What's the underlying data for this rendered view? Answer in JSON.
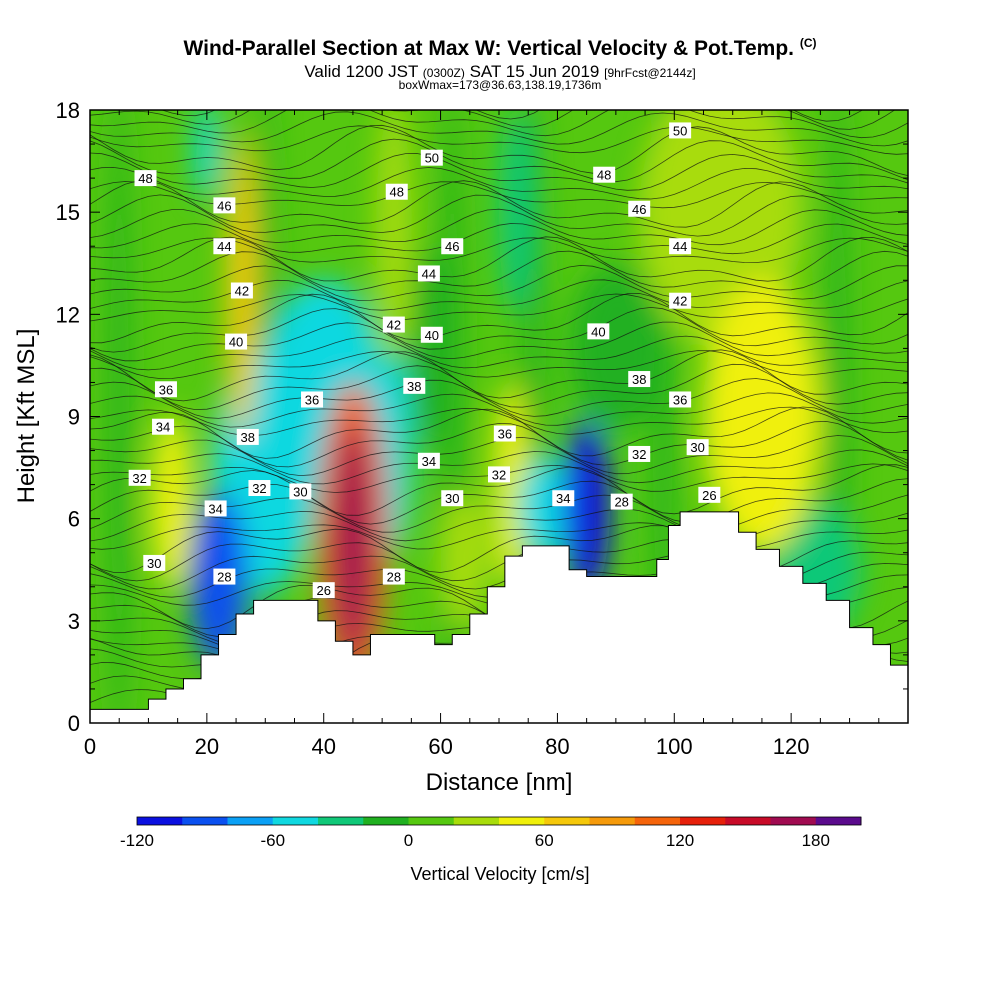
{
  "header": {
    "title": "Wind-Parallel Section at Max W: Vertical Velocity & Pot.Temp.",
    "copyright": "(C)",
    "valid_prefix": "Valid 1200 JST",
    "valid_utc": "(0300Z)",
    "valid_date": "SAT 15 Jun 2019",
    "forecast": "[9hrFcst@2144z]",
    "box_info": "boxWmax=173@36.63,138.19,1736m"
  },
  "chart_data": {
    "type": "heatmap",
    "xlabel": "Distance [nm]",
    "ylabel": "Height [Kft MSL]",
    "xlim": [
      0,
      140
    ],
    "ylim": [
      0,
      18
    ],
    "x_ticks": [
      "0",
      "20",
      "40",
      "60",
      "80",
      "100",
      "120"
    ],
    "x_tick_values": [
      0,
      20,
      40,
      60,
      80,
      100,
      120
    ],
    "y_ticks": [
      "0",
      "3",
      "6",
      "9",
      "12",
      "15",
      "18"
    ],
    "y_tick_values": [
      0,
      3,
      6,
      9,
      12,
      15,
      18
    ],
    "colorbar": {
      "label": "Vertical Velocity [cm/s]",
      "range": [
        -120,
        200
      ],
      "tick_labels": [
        "-120",
        "-60",
        "0",
        "60",
        "120",
        "180"
      ],
      "tick_values": [
        -120,
        -60,
        0,
        60,
        120,
        180
      ],
      "colors": [
        "#0a10e0",
        "#0a50f0",
        "#0aa0f5",
        "#10d8e0",
        "#10c878",
        "#20b020",
        "#55c810",
        "#a8dc0a",
        "#f0f00a",
        "#f5c80a",
        "#f59a0a",
        "#f5640a",
        "#e6200a",
        "#c80a28",
        "#a00a50",
        "#5a0a8c"
      ]
    },
    "terrain_kft": [
      [
        0,
        0.4
      ],
      [
        8,
        0.4
      ],
      [
        10,
        0.7
      ],
      [
        13,
        1.0
      ],
      [
        16,
        1.3
      ],
      [
        19,
        2.0
      ],
      [
        22,
        2.6
      ],
      [
        25,
        3.2
      ],
      [
        28,
        3.6
      ],
      [
        36,
        3.6
      ],
      [
        39,
        3.0
      ],
      [
        42,
        2.4
      ],
      [
        45,
        2.0
      ],
      [
        48,
        2.6
      ],
      [
        56,
        2.6
      ],
      [
        59,
        2.3
      ],
      [
        62,
        2.6
      ],
      [
        65,
        3.2
      ],
      [
        68,
        4.0
      ],
      [
        71,
        4.9
      ],
      [
        74,
        5.2
      ],
      [
        80,
        5.2
      ],
      [
        82,
        4.5
      ],
      [
        85,
        4.3
      ],
      [
        94,
        4.3
      ],
      [
        97,
        4.8
      ],
      [
        99,
        5.8
      ],
      [
        101,
        6.2
      ],
      [
        108,
        6.2
      ],
      [
        111,
        5.6
      ],
      [
        114,
        5.1
      ],
      [
        118,
        4.6
      ],
      [
        122,
        4.1
      ],
      [
        126,
        3.6
      ],
      [
        130,
        2.8
      ],
      [
        134,
        2.3
      ],
      [
        137,
        1.7
      ],
      [
        140,
        1.6
      ]
    ],
    "velocity_cells": [
      {
        "x": 45,
        "y": 5.3,
        "rx": 3.5,
        "ry": 3.5,
        "value": 175
      },
      {
        "x": 45,
        "y": 5.5,
        "rx": 6,
        "ry": 4.5,
        "value": 110
      },
      {
        "x": 85,
        "y": 6.3,
        "rx": 4,
        "ry": 2.6,
        "value": -115
      },
      {
        "x": 22,
        "y": 4.2,
        "rx": 5,
        "ry": 2.6,
        "value": -95
      },
      {
        "x": 30,
        "y": 7.4,
        "rx": 9,
        "ry": 3.5,
        "value": -55
      },
      {
        "x": 40,
        "y": 10.0,
        "rx": 10,
        "ry": 3,
        "value": -45
      },
      {
        "x": 26,
        "y": 12.8,
        "rx": 2.6,
        "ry": 4.5,
        "value": 75
      },
      {
        "x": 14,
        "y": 6.5,
        "rx": 3.5,
        "ry": 2.6,
        "value": 55
      },
      {
        "x": 115,
        "y": 9.0,
        "rx": 10,
        "ry": 4,
        "value": 45
      },
      {
        "x": 72,
        "y": 7.0,
        "rx": 3,
        "ry": 3,
        "value": 40
      },
      {
        "x": 64,
        "y": 4.8,
        "rx": 4,
        "ry": 2,
        "value": 35
      },
      {
        "x": 52,
        "y": 8.0,
        "rx": 3,
        "ry": 3,
        "value": -45
      },
      {
        "x": 78,
        "y": 6.3,
        "rx": 5,
        "ry": 1.5,
        "value": -60
      },
      {
        "x": 52,
        "y": 14.5,
        "rx": 3,
        "ry": 4,
        "value": 30
      },
      {
        "x": 73,
        "y": 15.0,
        "rx": 3,
        "ry": 3,
        "value": -40
      },
      {
        "x": 108,
        "y": 15.0,
        "rx": 14,
        "ry": 4,
        "value": 20
      },
      {
        "x": 124,
        "y": 4.5,
        "rx": 8,
        "ry": 2,
        "value": -35
      },
      {
        "x": 20,
        "y": 16.8,
        "rx": 2,
        "ry": 1.5,
        "value": -50
      },
      {
        "x": 58,
        "y": 11.0,
        "rx": 3,
        "ry": 3,
        "value": -20
      },
      {
        "x": 90,
        "y": 11.0,
        "rx": 8,
        "ry": 2.5,
        "value": -15
      }
    ],
    "theta_contour_labels": [
      {
        "text": "26",
        "x": 40,
        "y": 3.9
      },
      {
        "text": "28",
        "x": 23,
        "y": 4.3
      },
      {
        "text": "28",
        "x": 52,
        "y": 4.3
      },
      {
        "text": "28",
        "x": 91,
        "y": 6.5
      },
      {
        "text": "26",
        "x": 106,
        "y": 6.7
      },
      {
        "text": "30",
        "x": 11,
        "y": 4.7
      },
      {
        "text": "30",
        "x": 36,
        "y": 6.8
      },
      {
        "text": "30",
        "x": 62,
        "y": 6.6
      },
      {
        "text": "30",
        "x": 104,
        "y": 8.1
      },
      {
        "text": "32",
        "x": 8.5,
        "y": 7.2
      },
      {
        "text": "32",
        "x": 29,
        "y": 6.9
      },
      {
        "text": "32",
        "x": 70,
        "y": 7.3
      },
      {
        "text": "32",
        "x": 94,
        "y": 7.9
      },
      {
        "text": "34",
        "x": 21.5,
        "y": 6.3
      },
      {
        "text": "34",
        "x": 12.5,
        "y": 8.7
      },
      {
        "text": "34",
        "x": 58,
        "y": 7.7
      },
      {
        "text": "34",
        "x": 81,
        "y": 6.6
      },
      {
        "text": "36",
        "x": 13,
        "y": 9.8
      },
      {
        "text": "36",
        "x": 38,
        "y": 9.5
      },
      {
        "text": "36",
        "x": 71,
        "y": 8.5
      },
      {
        "text": "36",
        "x": 101,
        "y": 9.5
      },
      {
        "text": "38",
        "x": 27,
        "y": 8.4
      },
      {
        "text": "38",
        "x": 55.5,
        "y": 9.9
      },
      {
        "text": "38",
        "x": 94,
        "y": 10.1
      },
      {
        "text": "40",
        "x": 25,
        "y": 11.2
      },
      {
        "text": "40",
        "x": 58.5,
        "y": 11.4
      },
      {
        "text": "40",
        "x": 87,
        "y": 11.5
      },
      {
        "text": "42",
        "x": 26,
        "y": 12.7
      },
      {
        "text": "42",
        "x": 52,
        "y": 11.7
      },
      {
        "text": "42",
        "x": 101,
        "y": 12.4
      },
      {
        "text": "44",
        "x": 23,
        "y": 14.0
      },
      {
        "text": "44",
        "x": 58,
        "y": 13.2
      },
      {
        "text": "44",
        "x": 101,
        "y": 14.0
      },
      {
        "text": "46",
        "x": 23,
        "y": 15.2
      },
      {
        "text": "46",
        "x": 62,
        "y": 14.0
      },
      {
        "text": "46",
        "x": 94,
        "y": 15.1
      },
      {
        "text": "48",
        "x": 9.5,
        "y": 16.0
      },
      {
        "text": "48",
        "x": 52.5,
        "y": 15.6
      },
      {
        "text": "48",
        "x": 88,
        "y": 16.1
      },
      {
        "text": "50",
        "x": 58.5,
        "y": 16.6
      },
      {
        "text": "50",
        "x": 101,
        "y": 17.4
      }
    ]
  }
}
